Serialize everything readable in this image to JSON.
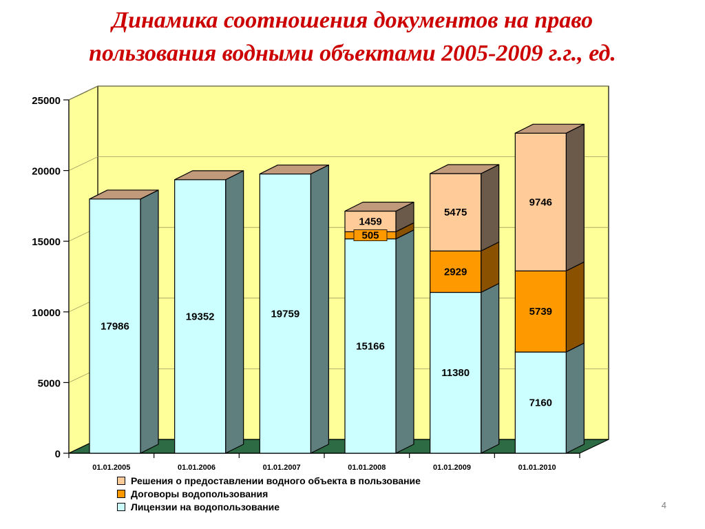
{
  "title": {
    "line1": "Динамика соотношения документов на право",
    "line2": "пользования водными объектами  2005-2009 г.г., ед."
  },
  "page_number": "4",
  "colors": {
    "licenses": "#ccffff",
    "licenses_side": "#5f7f7f",
    "contracts": "#ff9900",
    "contracts_side": "#8a5200",
    "decisions": "#ffcc99",
    "decisions_side": "#6b5a4a",
    "top": "#c09a7a",
    "back_wall": "#ffff99",
    "floor": "#2d6b45"
  },
  "chart_data": {
    "type": "bar",
    "stacked": true,
    "categories": [
      "01.01.2005",
      "01.01.2006",
      "01.01.2007",
      "01.01.2008",
      "01.01.2009",
      "01.01.2010"
    ],
    "series": [
      {
        "name": "Лицензии на водопользование",
        "color_key": "licenses",
        "values": [
          17986,
          19352,
          19759,
          15166,
          11380,
          7160
        ]
      },
      {
        "name": "Договоры водопользования",
        "color_key": "contracts",
        "values": [
          0,
          0,
          0,
          505,
          2929,
          5739
        ]
      },
      {
        "name": "Решения о предоставлении водного объекта в пользование",
        "color_key": "decisions",
        "values": [
          0,
          0,
          0,
          1459,
          5475,
          9746
        ]
      }
    ],
    "ylim": [
      0,
      25000
    ],
    "yticks": [
      "0",
      "5000",
      "10000",
      "15000",
      "20000",
      "25000"
    ],
    "grid": true,
    "legend_position": "bottom",
    "xlabel": "",
    "ylabel": ""
  },
  "legend": {
    "items": [
      {
        "label": "Решения о предоставлении водного объекта в пользование",
        "color_key": "decisions"
      },
      {
        "label": "Договоры водопользования",
        "color_key": "contracts"
      },
      {
        "label": "Лицензии на водопользование",
        "color_key": "licenses"
      }
    ]
  }
}
